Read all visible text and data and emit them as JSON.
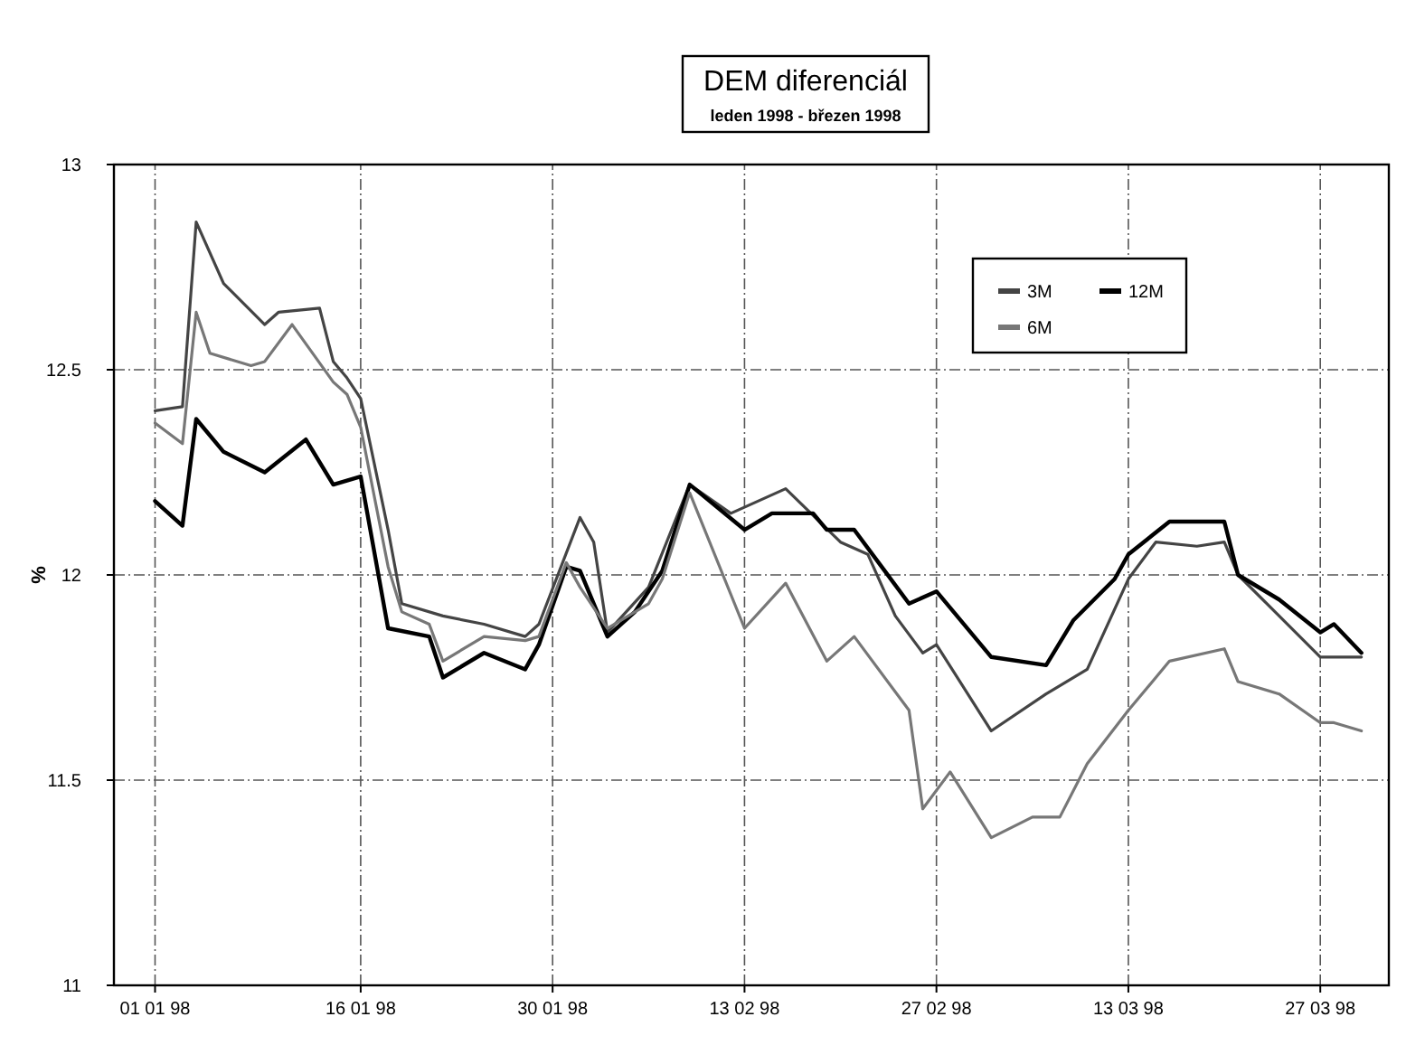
{
  "chart_data": {
    "type": "line",
    "title": "DEM diferenciál",
    "subtitle": "leden 1998 - březen 1998",
    "ylabel": "%",
    "xlim": [
      "1997-12-29",
      "1998-04-01"
    ],
    "xticks": [
      {
        "value": "1998-01-01",
        "label": "01 01 98"
      },
      {
        "value": "1998-01-16",
        "label": "16 01 98"
      },
      {
        "value": "1998-01-30",
        "label": "30 01 98"
      },
      {
        "value": "1998-02-13",
        "label": "13 02 98"
      },
      {
        "value": "1998-02-27",
        "label": "27 02 98"
      },
      {
        "value": "1998-03-13",
        "label": "13 03 98"
      },
      {
        "value": "1998-03-27",
        "label": "27 03 98"
      }
    ],
    "ylim": [
      11,
      13
    ],
    "yticks": [
      11,
      11.5,
      12,
      12.5,
      13
    ],
    "grid": true,
    "legend": "top right",
    "marker": "none",
    "line_style": "solid",
    "series": [
      {
        "name": "3M",
        "color": "#444444",
        "x": [
          "1998-01-01",
          "1998-01-03",
          "1998-01-04",
          "1998-01-06",
          "1998-01-09",
          "1998-01-10",
          "1998-01-13",
          "1998-01-14",
          "1998-01-15",
          "1998-01-16",
          "1998-01-18",
          "1998-01-19",
          "1998-01-22",
          "1998-01-25",
          "1998-01-28",
          "1998-01-29",
          "1998-02-01",
          "1998-02-02",
          "1998-02-03",
          "1998-02-06",
          "1998-02-09",
          "1998-02-12",
          "1998-02-16",
          "1998-02-20",
          "1998-02-22",
          "1998-02-24",
          "1998-02-26",
          "1998-02-27",
          "1998-03-03",
          "1998-03-07",
          "1998-03-10",
          "1998-03-13",
          "1998-03-15",
          "1998-03-18",
          "1998-03-20",
          "1998-03-21",
          "1998-03-24",
          "1998-03-27",
          "1998-03-30"
        ],
        "values": [
          12.4,
          12.41,
          12.86,
          12.71,
          12.61,
          12.64,
          12.65,
          12.52,
          12.48,
          12.43,
          12.11,
          11.93,
          11.9,
          11.88,
          11.85,
          11.88,
          12.14,
          12.08,
          11.86,
          11.97,
          12.22,
          12.15,
          12.21,
          12.08,
          12.05,
          11.9,
          11.81,
          11.83,
          11.62,
          11.71,
          11.77,
          11.99,
          12.08,
          12.07,
          12.08,
          12.0,
          11.9,
          11.8,
          11.8
        ]
      },
      {
        "name": "12M",
        "color": "#000000",
        "x": [
          "1998-01-01",
          "1998-01-03",
          "1998-01-04",
          "1998-01-06",
          "1998-01-09",
          "1998-01-12",
          "1998-01-14",
          "1998-01-16",
          "1998-01-18",
          "1998-01-21",
          "1998-01-22",
          "1998-01-25",
          "1998-01-28",
          "1998-01-29",
          "1998-01-31",
          "1998-02-01",
          "1998-02-03",
          "1998-02-05",
          "1998-02-07",
          "1998-02-09",
          "1998-02-13",
          "1998-02-15",
          "1998-02-18",
          "1998-02-19",
          "1998-02-21",
          "1998-02-23",
          "1998-02-25",
          "1998-02-27",
          "1998-03-03",
          "1998-03-07",
          "1998-03-09",
          "1998-03-12",
          "1998-03-13",
          "1998-03-16",
          "1998-03-20",
          "1998-03-21",
          "1998-03-24",
          "1998-03-27",
          "1998-03-28",
          "1998-03-30"
        ],
        "values": [
          12.18,
          12.12,
          12.38,
          12.3,
          12.25,
          12.33,
          12.22,
          12.24,
          11.87,
          11.85,
          11.75,
          11.81,
          11.77,
          11.83,
          12.02,
          12.01,
          11.85,
          11.91,
          12.01,
          12.22,
          12.11,
          12.15,
          12.15,
          12.11,
          12.11,
          12.02,
          11.93,
          11.96,
          11.8,
          11.78,
          11.89,
          11.99,
          12.05,
          12.13,
          12.13,
          12.0,
          11.94,
          11.86,
          11.88,
          11.81
        ]
      },
      {
        "name": "6M",
        "color": "#777777",
        "x": [
          "1998-01-01",
          "1998-01-03",
          "1998-01-04",
          "1998-01-05",
          "1998-01-08",
          "1998-01-09",
          "1998-01-11",
          "1998-01-14",
          "1998-01-15",
          "1998-01-16",
          "1998-01-18",
          "1998-01-19",
          "1998-01-21",
          "1998-01-22",
          "1998-01-25",
          "1998-01-28",
          "1998-01-29",
          "1998-01-31",
          "1998-02-01",
          "1998-02-03",
          "1998-02-06",
          "1998-02-07",
          "1998-02-09",
          "1998-02-13",
          "1998-02-16",
          "1998-02-19",
          "1998-02-21",
          "1998-02-25",
          "1998-02-26",
          "1998-02-28",
          "1998-03-03",
          "1998-03-06",
          "1998-03-08",
          "1998-03-10",
          "1998-03-13",
          "1998-03-16",
          "1998-03-20",
          "1998-03-21",
          "1998-03-24",
          "1998-03-27",
          "1998-03-28",
          "1998-03-30"
        ],
        "values": [
          12.37,
          12.32,
          12.64,
          12.54,
          12.51,
          12.52,
          12.61,
          12.47,
          12.44,
          12.36,
          12.02,
          11.91,
          11.88,
          11.79,
          11.85,
          11.84,
          11.85,
          12.03,
          11.97,
          11.87,
          11.93,
          11.99,
          12.2,
          11.87,
          11.98,
          11.79,
          11.85,
          11.67,
          11.43,
          11.52,
          11.36,
          11.41,
          11.41,
          11.54,
          11.67,
          11.79,
          11.82,
          11.74,
          11.71,
          11.64,
          11.64,
          11.62
        ]
      }
    ]
  }
}
